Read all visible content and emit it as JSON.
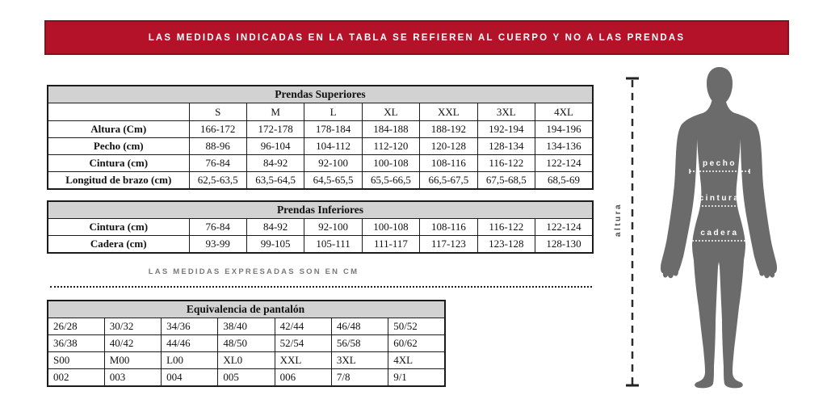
{
  "banner": {
    "text": "LAS MEDIDAS INDICADAS EN LA TABLA SE REFIEREN AL CUERPO Y NO A LAS PRENDAS"
  },
  "tables": {
    "superiores": {
      "title": "Prendas Superiores",
      "sizes": [
        "S",
        "M",
        "L",
        "XL",
        "XXL",
        "3XL",
        "4XL"
      ],
      "rows": [
        {
          "label": "Altura (Cm)",
          "values": [
            "166-172",
            "172-178",
            "178-184",
            "184-188",
            "188-192",
            "192-194",
            "194-196"
          ]
        },
        {
          "label": "Pecho (cm)",
          "values": [
            "88-96",
            "96-104",
            "104-112",
            "112-120",
            "120-128",
            "128-134",
            "134-136"
          ]
        },
        {
          "label": "Cintura (cm)",
          "values": [
            "76-84",
            "84-92",
            "92-100",
            "100-108",
            "108-116",
            "116-122",
            "122-124"
          ]
        },
        {
          "label": "Longitud de brazo (cm)",
          "values": [
            "62,5-63,5",
            "63,5-64,5",
            "64,5-65,5",
            "65,5-66,5",
            "66,5-67,5",
            "67,5-68,5",
            "68,5-69"
          ]
        }
      ]
    },
    "inferiores": {
      "title": "Prendas Inferiores",
      "rows": [
        {
          "label": "Cintura (cm)",
          "values": [
            "76-84",
            "84-92",
            "92-100",
            "100-108",
            "108-116",
            "116-122",
            "122-124"
          ]
        },
        {
          "label": "Cadera (cm)",
          "values": [
            "93-99",
            "99-105",
            "105-111",
            "111-117",
            "117-123",
            "123-128",
            "128-130"
          ]
        }
      ]
    },
    "equivalencia": {
      "title": "Equivalencia de pantalón",
      "rows": [
        [
          "26/28",
          "30/32",
          "34/36",
          "38/40",
          "42/44",
          "46/48",
          "50/52"
        ],
        [
          "36/38",
          "40/42",
          "44/46",
          "48/50",
          "52/54",
          "56/58",
          "60/62"
        ],
        [
          "S00",
          "M00",
          "L00",
          "XL0",
          "XXL",
          "3XL",
          "4XL"
        ],
        [
          "002",
          "003",
          "004",
          "005",
          "006",
          "7/8",
          "9/1"
        ]
      ]
    }
  },
  "caption": "LAS MEDIDAS EXPRESADAS SON EN CM",
  "figure": {
    "labels": {
      "altura": "altura",
      "pecho": "pecho",
      "cintura": "cintura",
      "cadera": "cadera"
    }
  },
  "colors": {
    "banner_red": "#b31229",
    "banner_border": "#8a0e20",
    "table_header_gray": "#d2d2d2",
    "silhouette_gray": "#6b6b6b"
  }
}
